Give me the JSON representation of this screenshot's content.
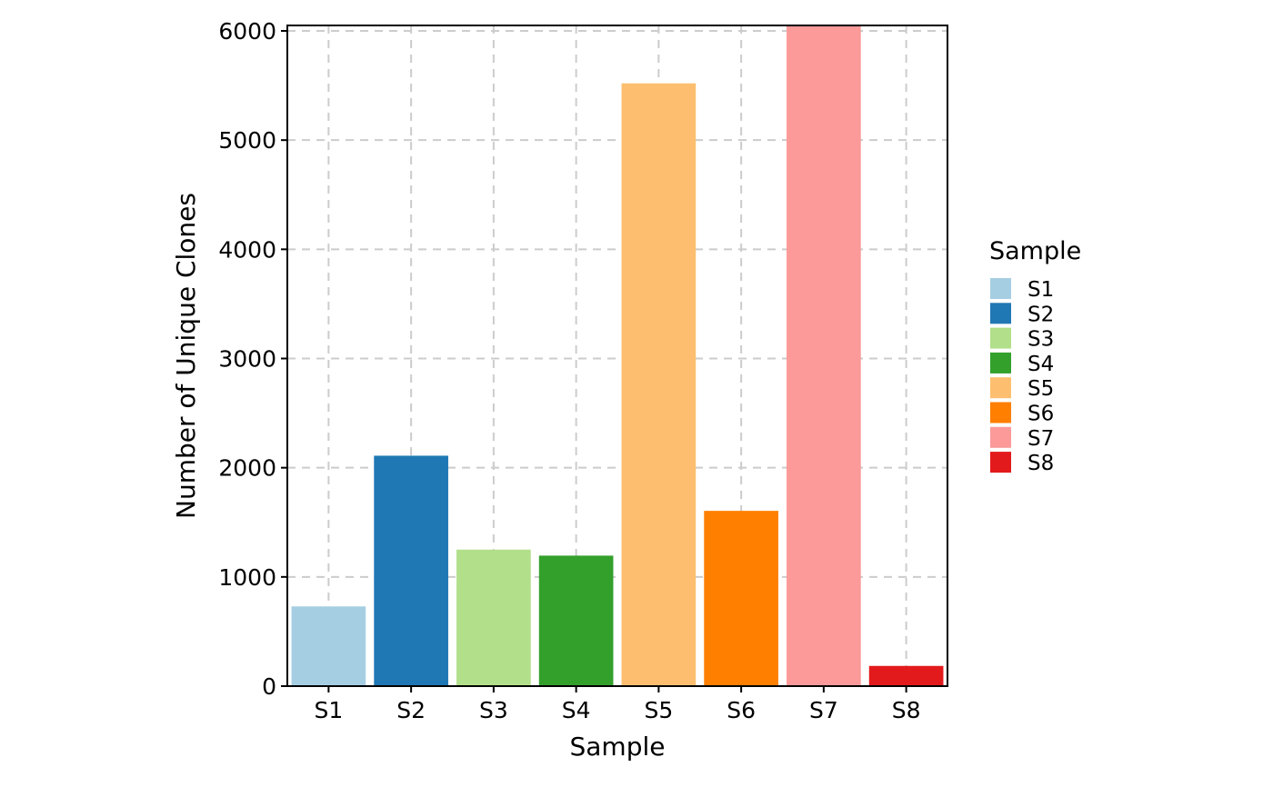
{
  "chart_data": {
    "type": "bar",
    "xlabel": "Sample",
    "ylabel": "Number of Unique Clones",
    "categories": [
      "S1",
      "S2",
      "S3",
      "S4",
      "S5",
      "S6",
      "S7",
      "S8"
    ],
    "values": [
      730,
      2110,
      1250,
      1195,
      5520,
      1605,
      6150,
      185
    ],
    "colors": [
      "#a6cee3",
      "#1f78b4",
      "#b2df8a",
      "#33a02c",
      "#fdbf6f",
      "#ff7f00",
      "#fb9a99",
      "#e31a1c"
    ],
    "ylim": [
      0,
      6050
    ],
    "yticks": [
      0,
      1000,
      2000,
      3000,
      4000,
      5000,
      6000
    ],
    "grid": true,
    "grid_style": "dashed",
    "legend": {
      "title": "Sample",
      "placement": "right",
      "entries": [
        "S1",
        "S2",
        "S3",
        "S4",
        "S5",
        "S6",
        "S7",
        "S8"
      ]
    }
  }
}
